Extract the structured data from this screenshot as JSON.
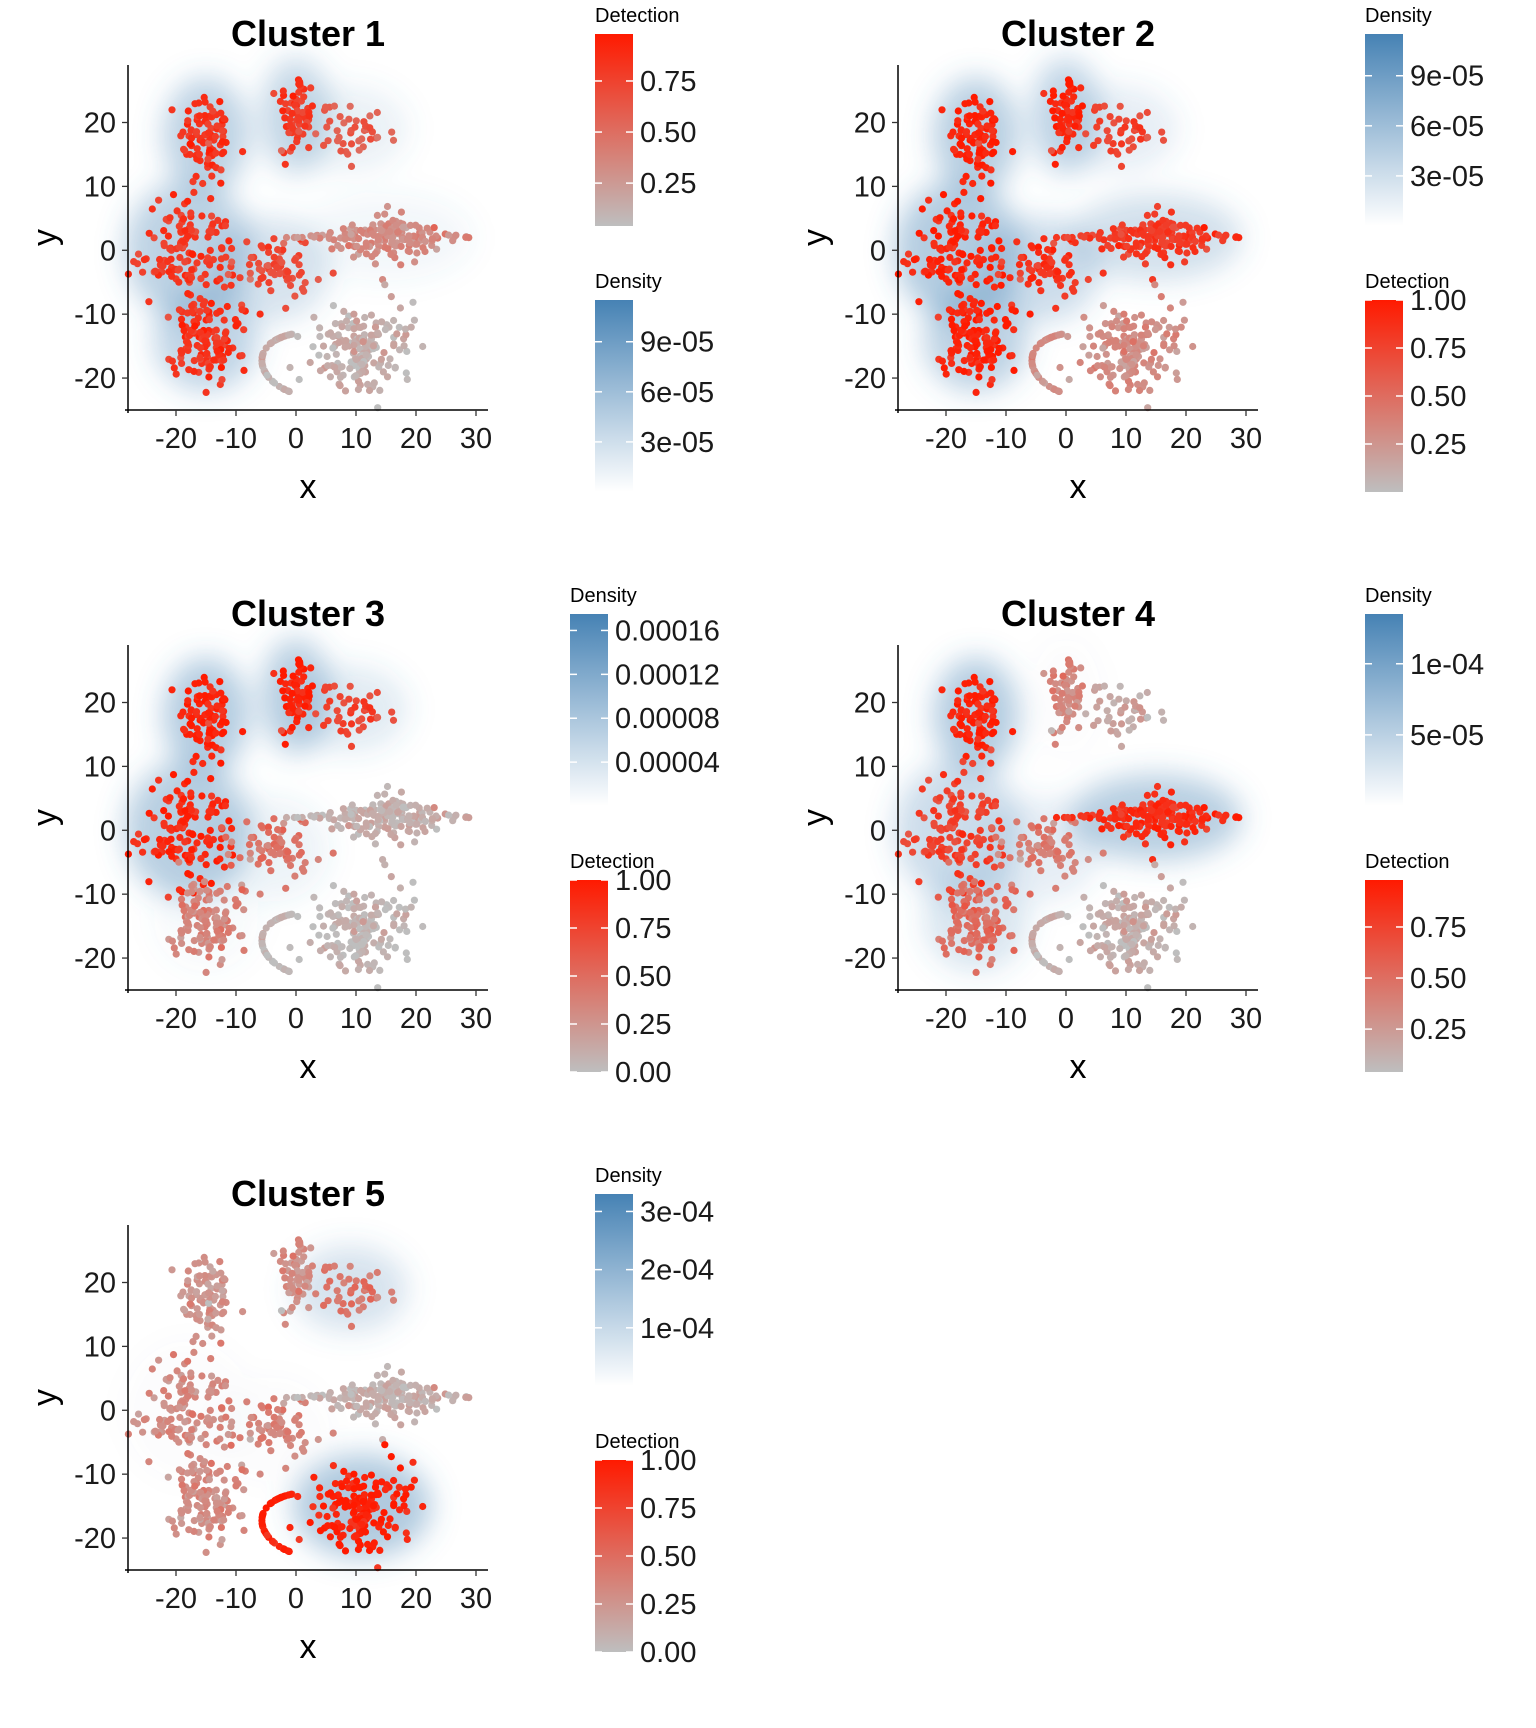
{
  "chart_data": [
    {
      "type": "scatter",
      "title": "Cluster 1",
      "xlabel": "x",
      "ylabel": "y",
      "xlim": [
        -28,
        32
      ],
      "ylim": [
        -25,
        29
      ],
      "xticks": [
        "-20",
        "-10",
        "0",
        "10",
        "20",
        "30"
      ],
      "yticks": [
        "-20",
        "-10",
        "0",
        "10",
        "20"
      ],
      "grid": false,
      "legends": [
        {
          "title": "Detection",
          "kind": "detection",
          "min": 0.04,
          "max": 0.98,
          "labels": [
            "0.25",
            "0.50",
            "0.75"
          ]
        },
        {
          "title": "Density",
          "kind": "density",
          "min": 0.0,
          "max": 0.000115,
          "labels": [
            "3e-05",
            "6e-05",
            "9e-05"
          ]
        }
      ],
      "cluster_detection": [
        0.85,
        0.82,
        0.8,
        0.85,
        0.7,
        0.3,
        0.6,
        0.1
      ],
      "cluster_density": [
        0.8,
        0.7,
        0.8,
        0.75,
        0.5,
        0.15,
        0.25,
        0.0
      ]
    },
    {
      "type": "scatter",
      "title": "Cluster 2",
      "xlabel": "x",
      "ylabel": "y",
      "xlim": [
        -28,
        32
      ],
      "ylim": [
        -25,
        29
      ],
      "xticks": [
        "-20",
        "-10",
        "0",
        "10",
        "20",
        "30"
      ],
      "yticks": [
        "-20",
        "-10",
        "0",
        "10",
        "20"
      ],
      "grid": false,
      "legends": [
        {
          "title": "Density",
          "kind": "density",
          "min": 0.0,
          "max": 0.000115,
          "labels": [
            "3e-05",
            "6e-05",
            "9e-05"
          ]
        },
        {
          "title": "Detection",
          "kind": "detection",
          "min": 0.0,
          "max": 1.0,
          "labels": [
            "0.25",
            "0.50",
            "0.75",
            "1.00"
          ]
        }
      ],
      "cluster_detection": [
        0.95,
        0.95,
        0.92,
        0.95,
        0.85,
        0.8,
        0.75,
        0.3
      ],
      "cluster_density": [
        0.85,
        0.75,
        0.9,
        0.8,
        0.6,
        0.55,
        0.3,
        0.0
      ]
    },
    {
      "type": "scatter",
      "title": "Cluster 3",
      "xlabel": "x",
      "ylabel": "y",
      "xlim": [
        -28,
        32
      ],
      "ylim": [
        -25,
        29
      ],
      "xticks": [
        "-20",
        "-10",
        "0",
        "10",
        "20",
        "30"
      ],
      "yticks": [
        "-20",
        "-10",
        "0",
        "10",
        "20"
      ],
      "grid": false,
      "legends": [
        {
          "title": "Density",
          "kind": "density",
          "min": 0.0,
          "max": 0.000175,
          "labels": [
            "0.00004",
            "0.00008",
            "0.00012",
            "0.00016"
          ]
        },
        {
          "title": "Detection",
          "kind": "detection",
          "min": 0.0,
          "max": 1.0,
          "labels": [
            "0.00",
            "0.25",
            "0.50",
            "0.75",
            "1.00"
          ]
        }
      ],
      "cluster_detection": [
        0.95,
        0.97,
        0.9,
        0.35,
        0.45,
        0.08,
        0.75,
        0.05
      ],
      "cluster_density": [
        0.9,
        0.85,
        0.85,
        0.1,
        0.2,
        0.0,
        0.35,
        0.0
      ]
    },
    {
      "type": "scatter",
      "title": "Cluster 4",
      "xlabel": "x",
      "ylabel": "y",
      "xlim": [
        -28,
        32
      ],
      "ylim": [
        -25,
        29
      ],
      "xticks": [
        "-20",
        "-10",
        "0",
        "10",
        "20",
        "30"
      ],
      "yticks": [
        "-20",
        "-10",
        "0",
        "10",
        "20"
      ],
      "grid": false,
      "legends": [
        {
          "title": "Density",
          "kind": "density",
          "min": 0.0,
          "max": 0.000135,
          "labels": [
            "5e-05",
            "1e-04"
          ]
        },
        {
          "title": "Detection",
          "kind": "detection",
          "min": 0.04,
          "max": 0.98,
          "labels": [
            "0.25",
            "0.50",
            "0.75"
          ]
        }
      ],
      "cluster_detection": [
        0.95,
        0.35,
        0.75,
        0.5,
        0.4,
        0.88,
        0.15,
        0.1
      ],
      "cluster_density": [
        0.9,
        0.05,
        0.6,
        0.45,
        0.3,
        0.85,
        0.0,
        0.0
      ]
    },
    {
      "type": "scatter",
      "title": "Cluster 5",
      "xlabel": "x",
      "ylabel": "y",
      "xlim": [
        -28,
        32
      ],
      "ylim": [
        -25,
        29
      ],
      "xticks": [
        "-20",
        "-10",
        "0",
        "10",
        "20",
        "30"
      ],
      "yticks": [
        "-20",
        "-10",
        "0",
        "10",
        "20"
      ],
      "grid": false,
      "legends": [
        {
          "title": "Density",
          "kind": "density",
          "min": 0.0,
          "max": 0.00033,
          "labels": [
            "1e-04",
            "2e-04",
            "3e-04"
          ]
        },
        {
          "title": "Detection",
          "kind": "detection",
          "min": 0.0,
          "max": 1.0,
          "labels": [
            "0.00",
            "0.25",
            "0.50",
            "0.75",
            "1.00"
          ]
        }
      ],
      "cluster_detection": [
        0.25,
        0.3,
        0.3,
        0.3,
        0.35,
        0.08,
        0.45,
        0.97
      ],
      "cluster_density": [
        0.0,
        0.0,
        0.05,
        0.0,
        0.05,
        0.0,
        0.5,
        0.95
      ]
    }
  ],
  "colors": {
    "detection_low": "#bebebe",
    "detection_high": "#ff1a00",
    "density_low": "#ffffff",
    "density_high": "#4682b4"
  }
}
